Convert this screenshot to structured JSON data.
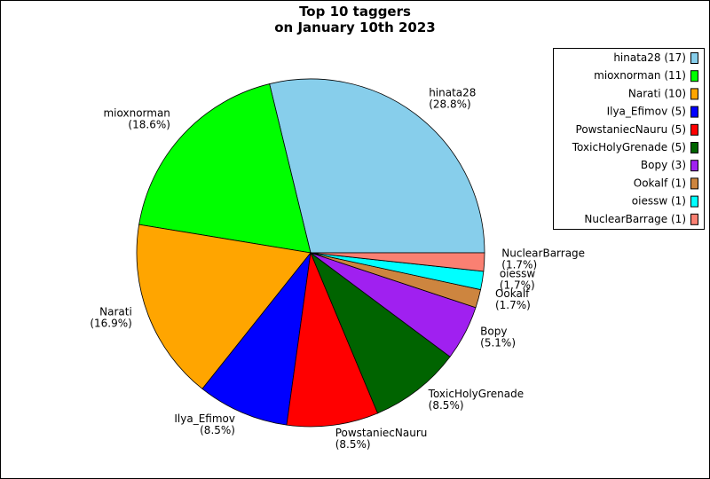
{
  "chart_data": {
    "type": "pie",
    "title": [
      "Top 10 taggers",
      "on January 10th 2023"
    ],
    "categories": [
      "hinata28",
      "mioxnorman",
      "Narati",
      "Ilya_Efimov",
      "PowstaniecNauru",
      "ToxicHolyGrenade",
      "Bopy",
      "Ookalf",
      "oiessw",
      "NuclearBarrage"
    ],
    "values": [
      28.8,
      18.6,
      16.9,
      8.5,
      8.5,
      8.5,
      5.1,
      1.7,
      1.7,
      1.7
    ],
    "value_labels": [
      "(28.8%)",
      "(18.6%)",
      "(16.9%)",
      "(8.5%)",
      "(8.5%)",
      "(8.5%)",
      "(5.1%)",
      "(1.7%)",
      "(1.7%)",
      "(1.7%)"
    ],
    "legend": [
      "hinata28 (17)",
      "mioxnorman (11)",
      "Narati (10)",
      "Ilya_Efimov (5)",
      "PowstaniecNauru (5)",
      "ToxicHolyGrenade (5)",
      "Bopy (3)",
      "Ookalf (1)",
      "oiessw (1)",
      "NuclearBarrage (1)"
    ],
    "colors": [
      "#87ceeb",
      "#00ff00",
      "#ffa500",
      "#0000ff",
      "#ff0000",
      "#006400",
      "#a020f0",
      "#cd853f",
      "#00ffff",
      "#fa8072"
    ],
    "legend_position": "upper right"
  }
}
